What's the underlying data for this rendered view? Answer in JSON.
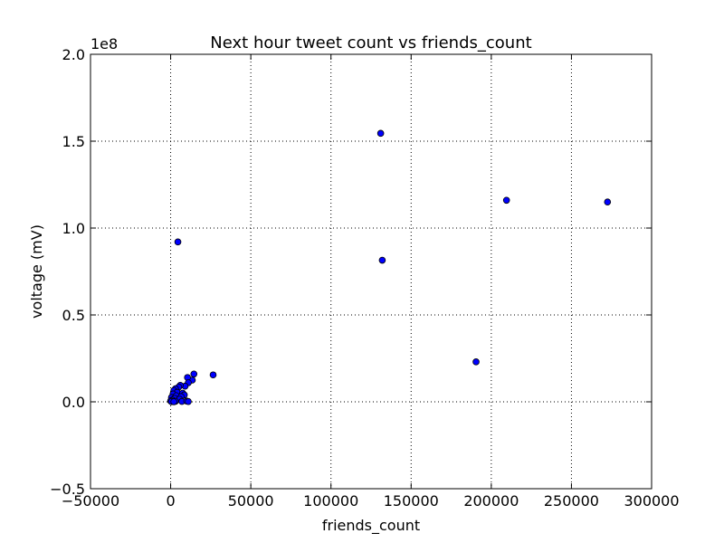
{
  "chart_data": {
    "type": "scatter",
    "title": "Next hour tweet count vs friends_count",
    "xlabel": "friends_count",
    "ylabel": "voltage (mV)",
    "y_multiplier": "1e8",
    "xlim": [
      -50000,
      300000
    ],
    "ylim": [
      -50000000,
      200000000
    ],
    "x_ticks": [
      -50000,
      0,
      50000,
      100000,
      150000,
      200000,
      250000,
      300000
    ],
    "x_tick_labels": [
      "−50000",
      "0",
      "50000",
      "100000",
      "150000",
      "200000",
      "250000",
      "300000"
    ],
    "y_ticks": [
      -50000000,
      0,
      50000000,
      100000000,
      150000000,
      200000000
    ],
    "y_tick_labels": [
      "−0.5",
      "0.0",
      "0.5",
      "1.0",
      "1.5",
      "2.0"
    ],
    "grid": true,
    "marker_color": "#0000ff",
    "points": [
      {
        "x": 131000,
        "y": 154500000
      },
      {
        "x": 209500,
        "y": 116000000
      },
      {
        "x": 272500,
        "y": 115000000
      },
      {
        "x": 4500,
        "y": 92000000
      },
      {
        "x": 132000,
        "y": 81500000
      },
      {
        "x": 190500,
        "y": 23000000
      },
      {
        "x": 26500,
        "y": 15500000
      },
      {
        "x": 14500,
        "y": 16000000
      },
      {
        "x": 13500,
        "y": 12500000
      },
      {
        "x": 10500,
        "y": 14000000
      },
      {
        "x": 11000,
        "y": 11000000
      },
      {
        "x": 9000,
        "y": 9000000
      },
      {
        "x": 6000,
        "y": 9500000
      },
      {
        "x": 5000,
        "y": 8500000
      },
      {
        "x": 3000,
        "y": 7500000
      },
      {
        "x": 2000,
        "y": 6500000
      },
      {
        "x": 4000,
        "y": 5500000
      },
      {
        "x": 7500,
        "y": 5000000
      },
      {
        "x": 8500,
        "y": 4000000
      },
      {
        "x": 1500,
        "y": 4500000
      },
      {
        "x": 3500,
        "y": 3500000
      },
      {
        "x": 6500,
        "y": 3000000
      },
      {
        "x": 500,
        "y": 2500000
      },
      {
        "x": 2500,
        "y": 2000000
      },
      {
        "x": 5500,
        "y": 1500000
      },
      {
        "x": 1000,
        "y": 1000000
      },
      {
        "x": 0,
        "y": 500000
      },
      {
        "x": 3000,
        "y": 300000
      },
      {
        "x": 7000,
        "y": 200000
      },
      {
        "x": 10000,
        "y": 400000
      },
      {
        "x": 11000,
        "y": 150000
      },
      {
        "x": 500,
        "y": 100000
      },
      {
        "x": 2000,
        "y": 50000
      }
    ]
  }
}
